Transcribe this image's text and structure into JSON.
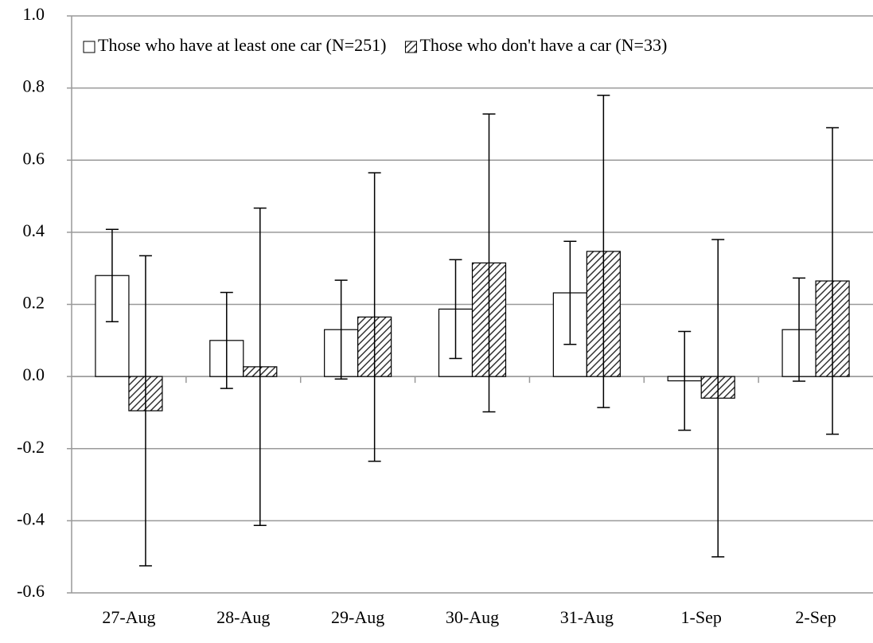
{
  "chart_data": {
    "type": "bar",
    "categories": [
      "27-Aug",
      "28-Aug",
      "29-Aug",
      "30-Aug",
      "31-Aug",
      "1-Sep",
      "2-Sep"
    ],
    "series": [
      {
        "name": "Those who have at least one car (N=251)",
        "color": "#ffffff",
        "hatch": false,
        "values": [
          0.28,
          0.1,
          0.13,
          0.187,
          0.232,
          -0.012,
          0.13
        ],
        "errors": [
          0.128,
          0.133,
          0.137,
          0.137,
          0.143,
          0.137,
          0.143
        ]
      },
      {
        "name": "Those who don't have a car (N=33)",
        "color": "#ffffff",
        "hatch": true,
        "values": [
          -0.095,
          0.027,
          0.165,
          0.315,
          0.347,
          -0.06,
          0.265
        ],
        "errors": [
          0.43,
          0.44,
          0.4,
          0.413,
          0.433,
          0.44,
          0.425
        ]
      }
    ],
    "ylim": [
      -0.6,
      1.0
    ],
    "yticks": [
      {
        "value": -0.6,
        "label": "-0.6"
      },
      {
        "value": -0.4,
        "label": "-0.4"
      },
      {
        "value": -0.2,
        "label": "-0.2"
      },
      {
        "value": 0,
        "label": "0.0"
      },
      {
        "value": 0.2,
        "label": "0.2"
      },
      {
        "value": 0.4,
        "label": "0.4"
      },
      {
        "value": 0.6,
        "label": "0.6"
      },
      {
        "value": 0.8,
        "label": "0.8"
      },
      {
        "value": 1.0,
        "label": "1.0"
      }
    ],
    "grid": true,
    "legend": "top"
  }
}
